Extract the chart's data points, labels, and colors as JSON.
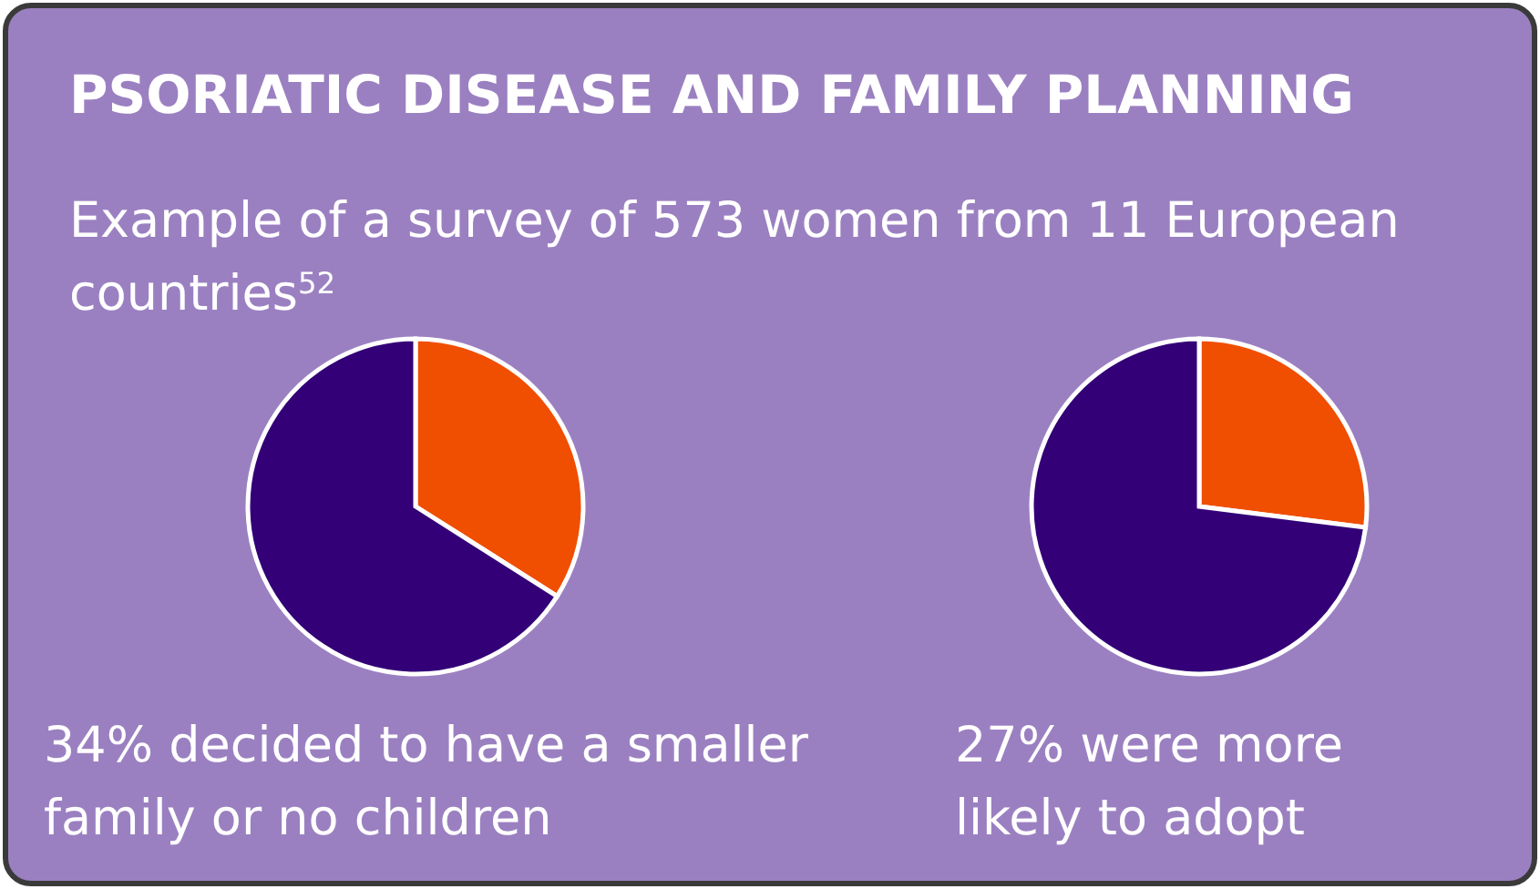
{
  "chart_data": [
    {
      "type": "pie",
      "title": "PSORIATIC DISEASE AND FAMILY PLANNING",
      "subtitle": "Example of a survey of 573 women from 11 European countries$^{52}$",
      "categories": [
        null,
        null
      ],
      "values": [
        34,
        66
      ],
      "colors": [
        "#f04e00",
        "#330077"
      ],
      "annotations": [
        "34% decided to have a smaller family or no children"
      ]
    },
    {
      "type": "pie",
      "categories": [
        null,
        null
      ],
      "values": [
        27,
        73
      ],
      "colors": [
        "#f04e00",
        "#330077"
      ],
      "annotations": [
        "27% were more likely to adopt"
      ]
    }
  ]
}
